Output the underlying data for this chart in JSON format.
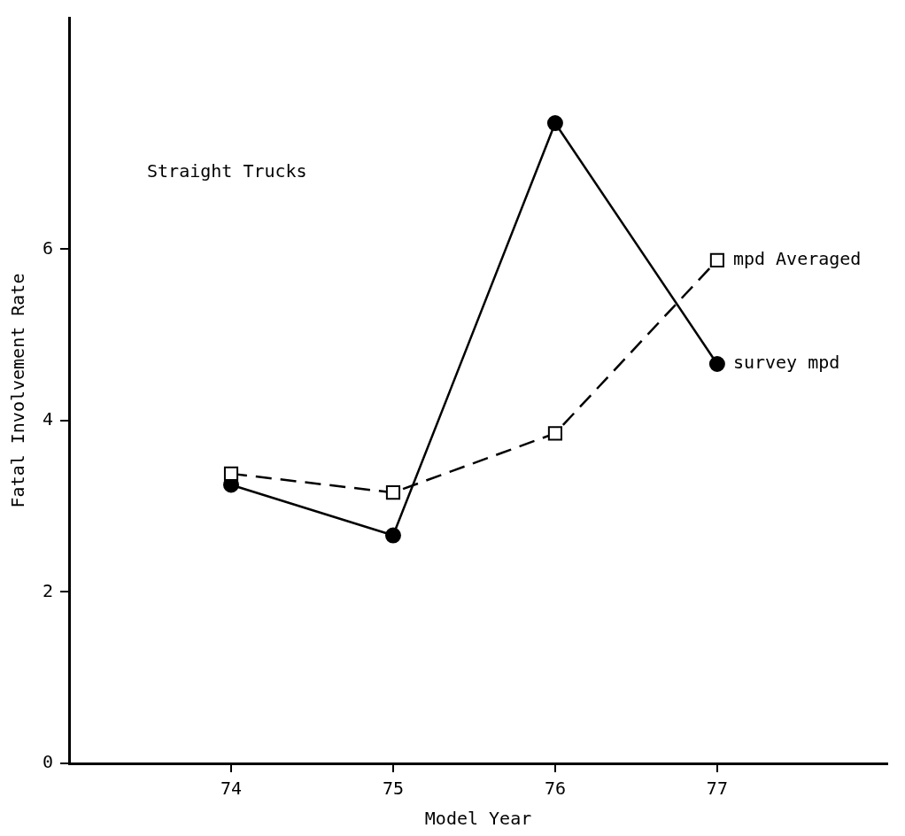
{
  "chart_data": {
    "type": "line",
    "xlabel": "Model Year",
    "ylabel": "Fatal Involvement Rate",
    "annotations": [
      "Straight Trucks"
    ],
    "x": [
      74,
      75,
      76,
      77
    ],
    "xlim": [
      73,
      78.05
    ],
    "xticks": [
      74,
      75,
      76,
      77
    ],
    "ylim": [
      0,
      8.7
    ],
    "yticks": [
      0,
      2,
      4,
      6
    ],
    "grid": false,
    "legend": false,
    "series": [
      {
        "name": "mpd Averaged",
        "color": "#000000",
        "marker": "square",
        "line_style": "dashed",
        "values": [
          3.38,
          3.16,
          3.85,
          5.87
        ]
      },
      {
        "name": "survey mpd",
        "color": "#000000",
        "marker": "circle",
        "line_style": "solid",
        "values": [
          3.25,
          2.66,
          7.47,
          4.66
        ]
      }
    ]
  }
}
